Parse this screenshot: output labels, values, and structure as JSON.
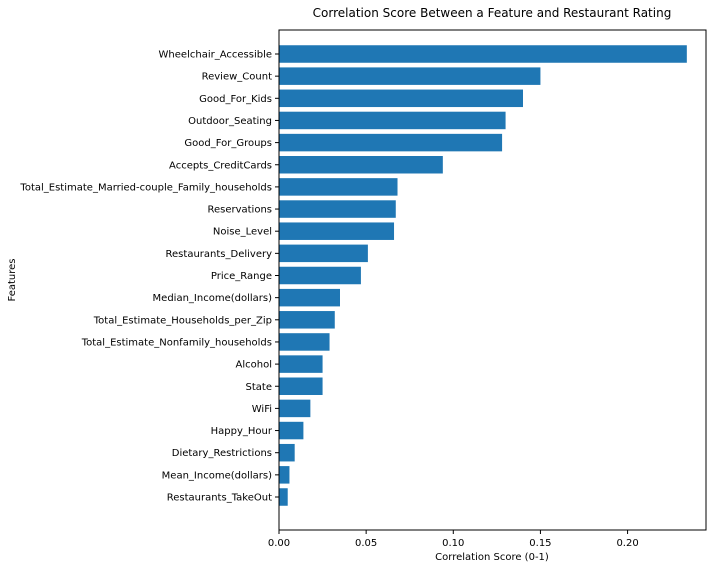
{
  "chart_data": {
    "type": "bar",
    "orientation": "horizontal",
    "title": "Correlation Score Between a Feature and Restaurant Rating",
    "xlabel": "Correlation Score (0-1)",
    "ylabel": "Features",
    "xlim": [
      0,
      0.245
    ],
    "xticks": [
      0.0,
      0.05,
      0.1,
      0.15,
      0.2
    ],
    "xtick_labels": [
      "0.00",
      "0.05",
      "0.10",
      "0.15",
      "0.20"
    ],
    "bar_color": "#1f77b4",
    "grid": false,
    "categories": [
      "Wheelchair_Accessible",
      "Review_Count",
      "Good_For_Kids",
      "Outdoor_Seating",
      "Good_For_Groups",
      "Accepts_CreditCards",
      "Total_Estimate_Married-couple_Family_households",
      "Reservations",
      "Noise_Level",
      "Restaurants_Delivery",
      "Price_Range",
      "Median_Income(dollars)",
      "Total_Estimate_Households_per_Zip",
      "Total_Estimate_Nonfamily_households",
      "Alcohol",
      "State",
      "WiFi",
      "Happy_Hour",
      "Dietary_Restrictions",
      "Mean_Income(dollars)",
      "Restaurants_TakeOut"
    ],
    "values": [
      0.234,
      0.15,
      0.14,
      0.13,
      0.128,
      0.094,
      0.068,
      0.067,
      0.066,
      0.051,
      0.047,
      0.035,
      0.032,
      0.029,
      0.025,
      0.025,
      0.018,
      0.014,
      0.009,
      0.006,
      0.005
    ]
  }
}
